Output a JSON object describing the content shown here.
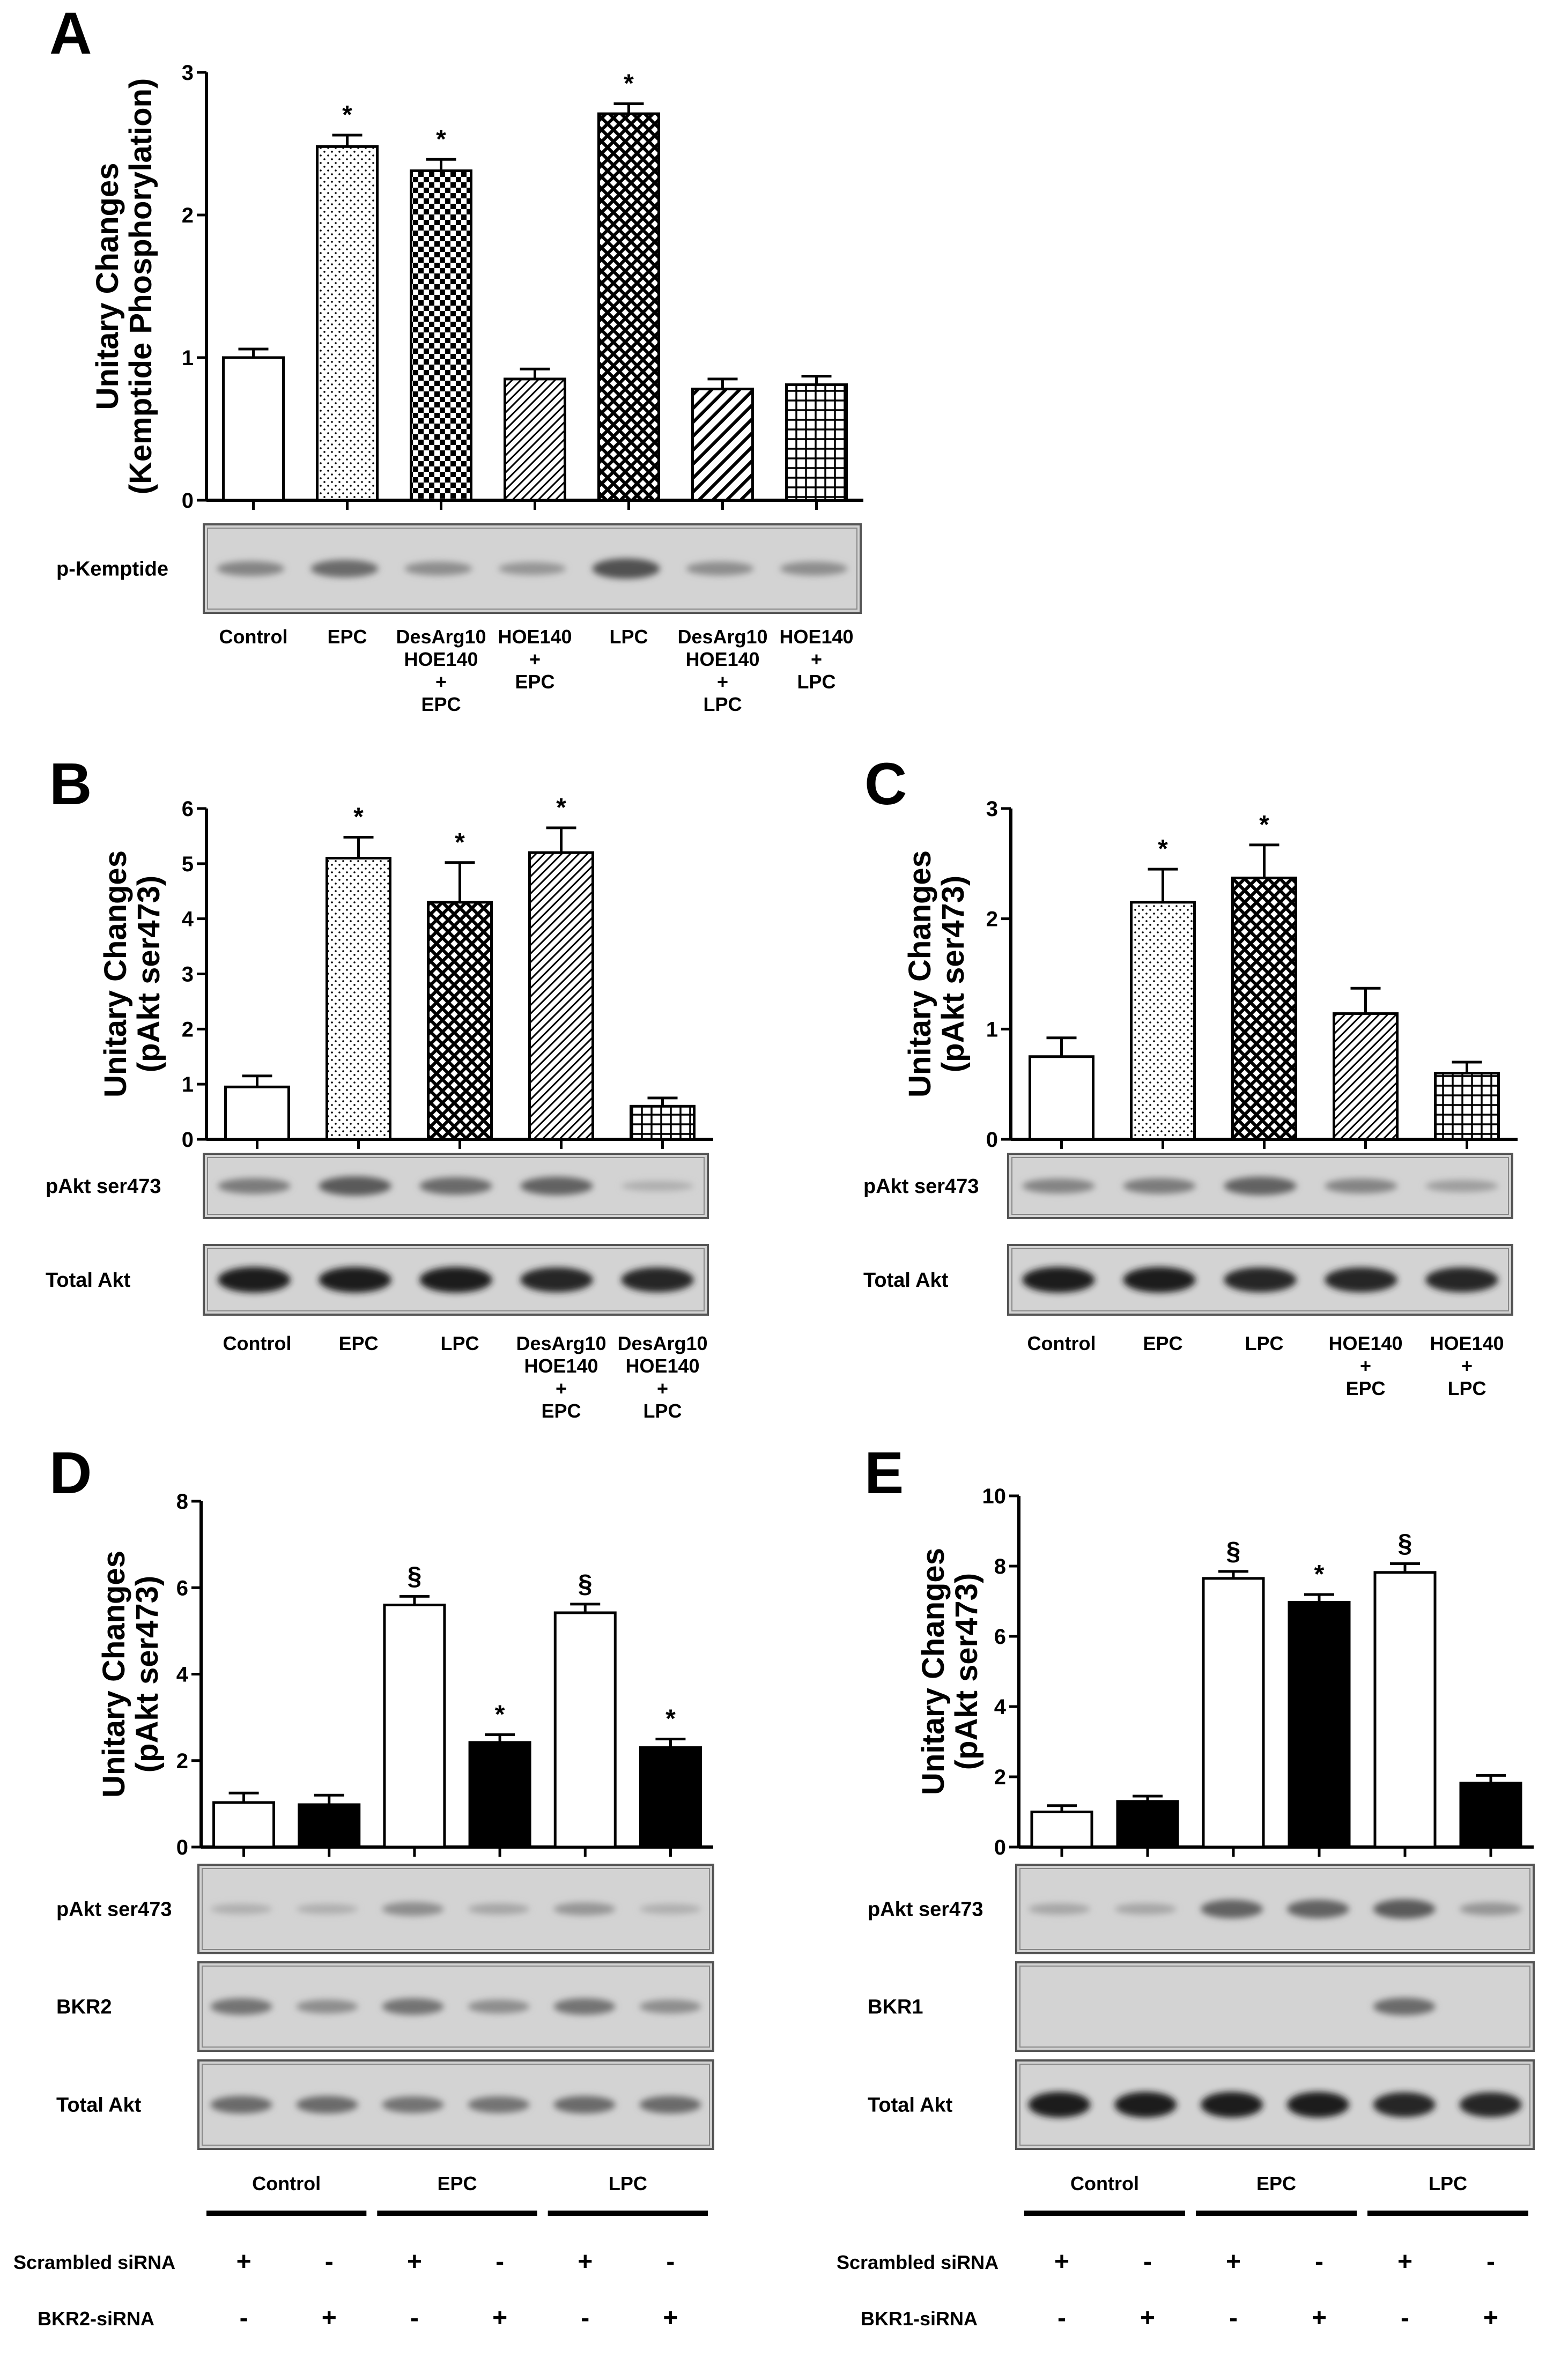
{
  "colors": {
    "ink": "#000000",
    "blot_bg": "#d3d3d3",
    "paper": "#ffffff"
  },
  "chart_data": [
    {
      "panel": "A",
      "type": "bar",
      "ylabel_line1": "Unitary Changes",
      "ylabel_line2": "(Kemptide Phosphorylation)",
      "ylim": [
        0,
        3
      ],
      "yticks": [
        "0",
        "1",
        "2",
        "3"
      ],
      "categories": [
        [
          "Control"
        ],
        [
          "EPC"
        ],
        [
          "DesArg10",
          "HOE140",
          "+",
          "EPC"
        ],
        [
          "HOE140",
          "+",
          "EPC"
        ],
        [
          "LPC"
        ],
        [
          "DesArg10",
          "HOE140",
          "+",
          "LPC"
        ],
        [
          "HOE140",
          "+",
          "LPC"
        ]
      ],
      "values": [
        1.0,
        2.48,
        2.31,
        0.85,
        2.71,
        0.78,
        0.81
      ],
      "errors": [
        0.06,
        0.08,
        0.08,
        0.07,
        0.07,
        0.07,
        0.06
      ],
      "patterns": [
        "white",
        "dots",
        "check",
        "diag",
        "crosshatch",
        "wide-diag",
        "grid"
      ],
      "markers": [
        "",
        "*",
        "*",
        "",
        "*",
        "",
        ""
      ],
      "blots": [
        {
          "label": "p-Kemptide",
          "intensity": [
            0.4,
            0.55,
            0.35,
            0.3,
            0.7,
            0.35,
            0.35
          ]
        }
      ]
    },
    {
      "panel": "B",
      "type": "bar",
      "ylabel_line1": "Unitary Changes",
      "ylabel_line2": "(pAkt ser473)",
      "ylim": [
        0,
        6
      ],
      "yticks": [
        "0",
        "1",
        "2",
        "3",
        "4",
        "5",
        "6"
      ],
      "categories": [
        [
          "Control"
        ],
        [
          "EPC"
        ],
        [
          "LPC"
        ],
        [
          "DesArg10",
          "HOE140",
          "+",
          "EPC"
        ],
        [
          "DesArg10",
          "HOE140",
          "+",
          "LPC"
        ]
      ],
      "values": [
        0.95,
        5.1,
        4.3,
        5.2,
        0.6
      ],
      "errors": [
        0.2,
        0.38,
        0.72,
        0.45,
        0.15
      ],
      "patterns": [
        "white",
        "dots",
        "crosshatch",
        "diag",
        "grid"
      ],
      "markers": [
        "",
        "*",
        "*",
        "*",
        ""
      ],
      "blots": [
        {
          "label": "pAkt ser473",
          "intensity": [
            0.45,
            0.65,
            0.55,
            0.6,
            0.15
          ]
        },
        {
          "label": "Total Akt",
          "intensity": [
            1.0,
            1.0,
            1.0,
            0.95,
            0.95
          ]
        }
      ]
    },
    {
      "panel": "C",
      "type": "bar",
      "ylabel_line1": "Unitary Changes",
      "ylabel_line2": "(pAkt ser473)",
      "ylim": [
        0,
        3
      ],
      "yticks": [
        "0",
        "1",
        "2",
        "3"
      ],
      "categories": [
        [
          "Control"
        ],
        [
          "EPC"
        ],
        [
          "LPC"
        ],
        [
          "HOE140",
          "+",
          "EPC"
        ],
        [
          "HOE140",
          "+",
          "LPC"
        ]
      ],
      "values": [
        0.75,
        2.15,
        2.37,
        1.14,
        0.6
      ],
      "errors": [
        0.17,
        0.3,
        0.3,
        0.23,
        0.1
      ],
      "patterns": [
        "white",
        "dots",
        "crosshatch",
        "diag",
        "grid"
      ],
      "markers": [
        "",
        "*",
        "*",
        "",
        ""
      ],
      "blots": [
        {
          "label": "pAkt ser473",
          "intensity": [
            0.4,
            0.45,
            0.6,
            0.4,
            0.25
          ]
        },
        {
          "label": "Total Akt",
          "intensity": [
            1.0,
            1.0,
            0.95,
            0.95,
            0.95
          ]
        }
      ]
    },
    {
      "panel": "D",
      "type": "bar",
      "ylabel_line1": "Unitary Changes",
      "ylabel_line2": "(pAkt ser473)",
      "ylim": [
        0,
        8
      ],
      "yticks": [
        "0",
        "2",
        "4",
        "6",
        "8"
      ],
      "values": [
        1.03,
        0.98,
        5.6,
        2.42,
        5.42,
        2.3
      ],
      "errors": [
        0.22,
        0.22,
        0.2,
        0.18,
        0.2,
        0.2
      ],
      "patterns": [
        "white",
        "black",
        "white",
        "black",
        "white",
        "black"
      ],
      "markers": [
        "",
        "",
        "§",
        "*",
        "§",
        "*"
      ],
      "groups": [
        "Control",
        "EPC",
        "LPC"
      ],
      "row1_label": "Scrambled siRNA",
      "row1_signs": [
        "+",
        "-",
        "+",
        "-",
        "+",
        "-"
      ],
      "row2_label": "BKR2-siRNA",
      "row2_signs": [
        "-",
        "+",
        "-",
        "+",
        "-",
        "+"
      ],
      "blots": [
        {
          "label": "pAkt ser473",
          "intensity": [
            0.15,
            0.15,
            0.35,
            0.2,
            0.3,
            0.15
          ]
        },
        {
          "label": "BKR2",
          "intensity": [
            0.5,
            0.35,
            0.5,
            0.35,
            0.5,
            0.35
          ]
        },
        {
          "label": "Total Akt",
          "intensity": [
            0.55,
            0.55,
            0.5,
            0.5,
            0.55,
            0.55
          ]
        }
      ]
    },
    {
      "panel": "E",
      "type": "bar",
      "ylabel_line1": "Unitary Changes",
      "ylabel_line2": "(pAkt ser473)",
      "ylim": [
        0,
        10
      ],
      "yticks": [
        "0",
        "2",
        "4",
        "6",
        "8",
        "10"
      ],
      "values": [
        1.0,
        1.3,
        7.65,
        6.97,
        7.82,
        1.82
      ],
      "errors": [
        0.18,
        0.15,
        0.2,
        0.22,
        0.25,
        0.22
      ],
      "patterns": [
        "white",
        "black",
        "white",
        "black",
        "white",
        "black"
      ],
      "markers": [
        "",
        "",
        "§",
        "*",
        "§",
        ""
      ],
      "groups": [
        "Control",
        "EPC",
        "LPC"
      ],
      "row1_label": "Scrambled siRNA",
      "row1_signs": [
        "+",
        "-",
        "+",
        "-",
        "+",
        "-"
      ],
      "row2_label": "BKR1-siRNA",
      "row2_signs": [
        "-",
        "+",
        "-",
        "+",
        "-",
        "+"
      ],
      "blots": [
        {
          "label": "pAkt ser473",
          "intensity": [
            0.2,
            0.2,
            0.6,
            0.6,
            0.65,
            0.3
          ]
        },
        {
          "label": "BKR1",
          "intensity": [
            0.0,
            0.0,
            0.0,
            0.0,
            0.55,
            0.0
          ]
        },
        {
          "label": "Total Akt",
          "intensity": [
            1.0,
            1.0,
            1.0,
            1.0,
            0.95,
            0.95
          ]
        }
      ]
    }
  ]
}
